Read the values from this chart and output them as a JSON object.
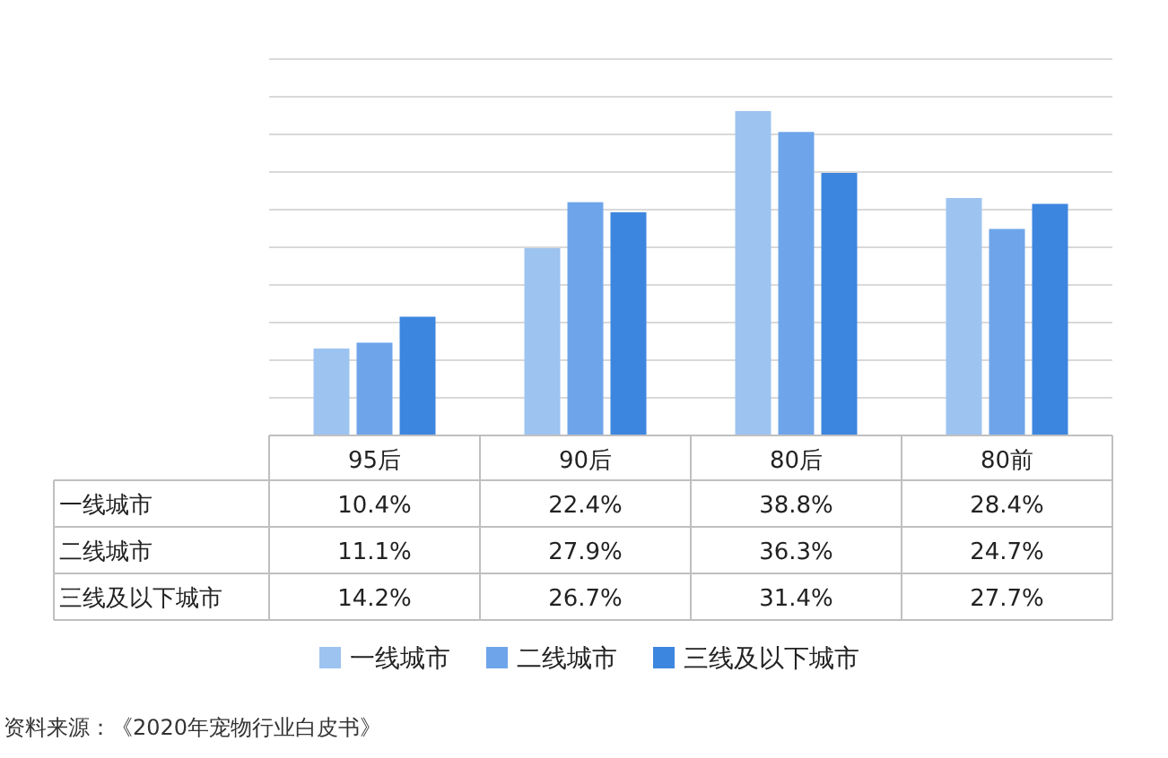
{
  "chart_data": {
    "type": "bar",
    "categories": [
      "95后",
      "90后",
      "80后",
      "80前"
    ],
    "series": [
      {
        "name": "一线城市",
        "color": "#9dc3f0",
        "values": [
          10.4,
          22.4,
          38.8,
          28.4
        ],
        "value_labels": [
          "10.4%",
          "22.4%",
          "38.8%",
          "28.4%"
        ]
      },
      {
        "name": "二线城市",
        "color": "#6ea5ea",
        "values": [
          11.1,
          27.9,
          36.3,
          24.7
        ],
        "value_labels": [
          "11.1%",
          "27.9%",
          "36.3%",
          "24.7%"
        ]
      },
      {
        "name": "三线及以下城市",
        "color": "#3d86df",
        "values": [
          14.2,
          26.7,
          31.4,
          27.7
        ],
        "value_labels": [
          "14.2%",
          "26.7%",
          "31.4%",
          "27.7%"
        ]
      }
    ],
    "grid": "y",
    "legend": "bottom",
    "annotations": [
      "资料来源：《2020年宠物行业白皮书》"
    ]
  }
}
